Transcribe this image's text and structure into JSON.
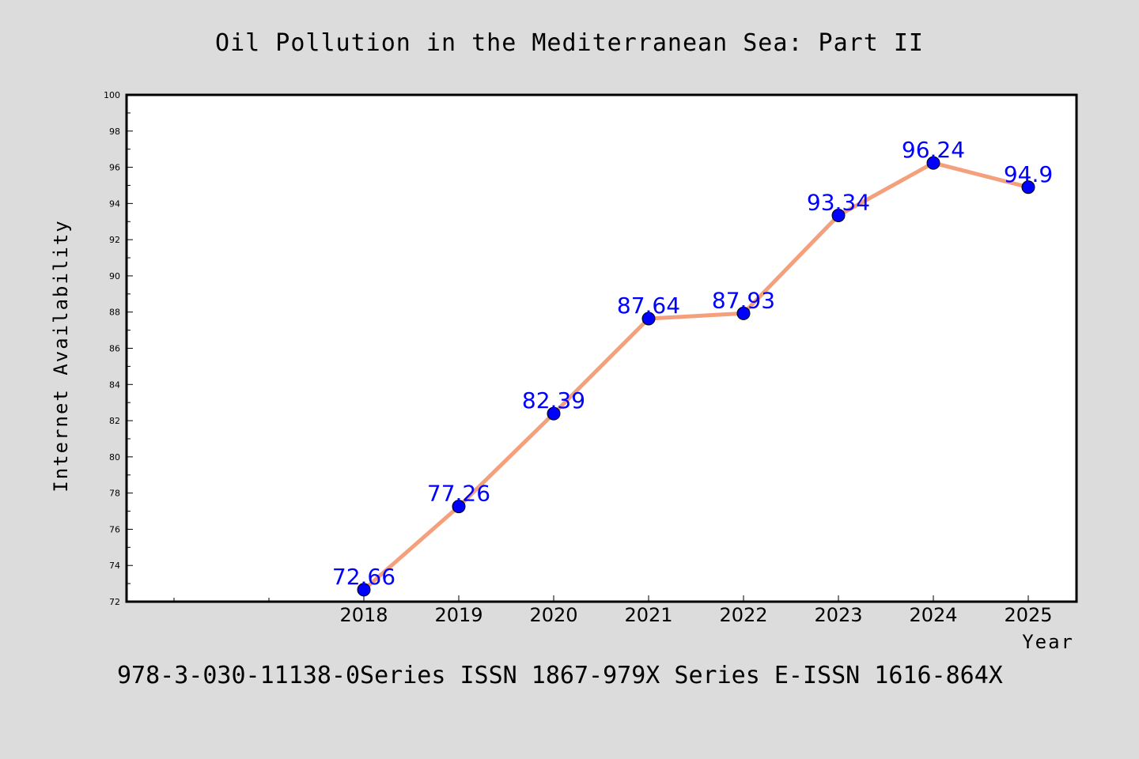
{
  "chart_data": {
    "type": "line",
    "title": "Oil Pollution in the Mediterranean Sea: Part II",
    "xlabel": "Year",
    "ylabel": "Internet Availability",
    "categories": [
      "2018",
      "2019",
      "2020",
      "2021",
      "2022",
      "2023",
      "2024",
      "2025"
    ],
    "series": [
      {
        "values": [
          72.66,
          77.26,
          82.39,
          87.64,
          87.93,
          93.34,
          96.24,
          94.9
        ],
        "labels": [
          "72.66",
          "77.26",
          "82.39",
          "87.64",
          "87.93",
          "93.34",
          "96.24",
          "94.9"
        ],
        "line_color": "#f4a07c",
        "marker_color": "#0000ff"
      }
    ],
    "ylim": [
      72,
      100
    ],
    "yticks": [
      "72",
      "74",
      "76",
      "78",
      "80",
      "82",
      "84",
      "86",
      "88",
      "90",
      "92",
      "94",
      "96",
      "98",
      "100"
    ],
    "x_leading_empty_slots": 2,
    "grid": false,
    "legend": "none"
  },
  "footer": "978-3-030-11138-0Series ISSN 1867-979X Series E-ISSN 1616-864X",
  "colors": {
    "background": "#dcdcdc",
    "plot_bg": "#ffffff",
    "data_label": "#0000ff"
  }
}
